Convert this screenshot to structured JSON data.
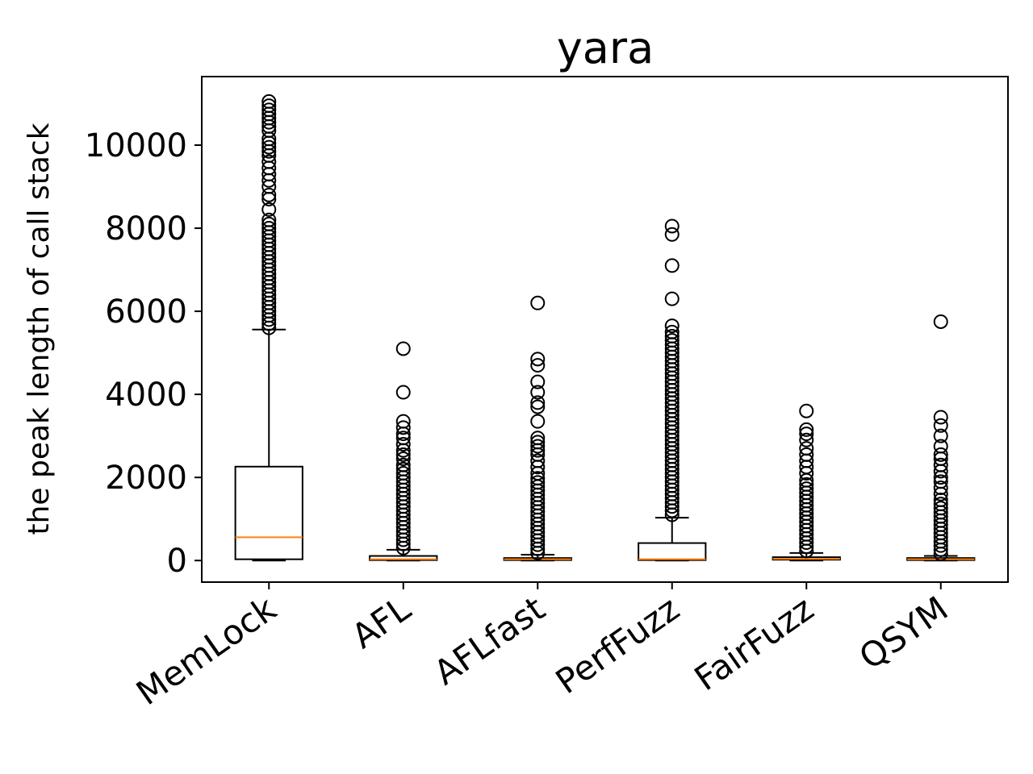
{
  "chart_data": {
    "type": "box",
    "title": "yara",
    "xlabel": "",
    "ylabel": "the peak length of call stack",
    "ylim": [
      -520,
      11650
    ],
    "yticks": [
      0,
      2000,
      4000,
      6000,
      8000,
      10000
    ],
    "grid": false,
    "colors": {
      "box": "#000000",
      "median": "#ff7f0e",
      "flier": "#000000"
    },
    "categories": [
      "MemLock",
      "AFL",
      "AFLfast",
      "PerfFuzz",
      "FairFuzz",
      "QSYM"
    ],
    "boxes": [
      {
        "name": "MemLock",
        "whislo": 0,
        "q1": 30,
        "median": 560,
        "q3": 2260,
        "whishi": 5560,
        "fliers": [
          5600,
          5700,
          5800,
          5900,
          6000,
          6100,
          6200,
          6300,
          6400,
          6500,
          6600,
          6700,
          6800,
          6900,
          7000,
          7100,
          7200,
          7300,
          7400,
          7500,
          7600,
          7700,
          7800,
          7900,
          8000,
          8100,
          8200,
          8450,
          8700,
          8800,
          9000,
          9150,
          9300,
          9450,
          9600,
          9750,
          9850,
          9950,
          10050,
          10150,
          10350,
          10450,
          10550,
          10650,
          10750,
          10850,
          10950,
          11050
        ]
      },
      {
        "name": "AFL",
        "whislo": 0,
        "q1": 10,
        "median": 30,
        "q3": 110,
        "whishi": 260,
        "fliers": [
          300,
          400,
          500,
          600,
          700,
          800,
          900,
          1000,
          1100,
          1200,
          1300,
          1400,
          1500,
          1600,
          1700,
          1800,
          1900,
          2000,
          2100,
          2200,
          2300,
          2450,
          2550,
          2650,
          2800,
          2950,
          3050,
          3200,
          3350,
          4050,
          5100
        ]
      },
      {
        "name": "AFLfast",
        "whislo": 0,
        "q1": 10,
        "median": 30,
        "q3": 60,
        "whishi": 140,
        "fliers": [
          180,
          280,
          380,
          480,
          580,
          680,
          780,
          880,
          980,
          1080,
          1180,
          1280,
          1380,
          1480,
          1580,
          1680,
          1780,
          1880,
          1980,
          2100,
          2250,
          2400,
          2550,
          2650,
          2750,
          2850,
          2950,
          3350,
          3700,
          3800,
          4050,
          4300,
          4700,
          4850,
          6200
        ]
      },
      {
        "name": "PerfFuzz",
        "whislo": 0,
        "q1": 10,
        "median": 30,
        "q3": 420,
        "whishi": 1030,
        "fliers": [
          1100,
          1200,
          1300,
          1400,
          1500,
          1600,
          1700,
          1800,
          1900,
          2000,
          2100,
          2200,
          2300,
          2400,
          2500,
          2600,
          2700,
          2800,
          2900,
          3000,
          3100,
          3200,
          3300,
          3400,
          3500,
          3600,
          3700,
          3800,
          3900,
          4000,
          4100,
          4200,
          4300,
          4400,
          4500,
          4600,
          4700,
          4800,
          4900,
          5000,
          5100,
          5200,
          5300,
          5400,
          5500,
          5650,
          6300,
          7100,
          7850,
          8050
        ]
      },
      {
        "name": "FairFuzz",
        "whislo": 0,
        "q1": 20,
        "median": 40,
        "q3": 80,
        "whishi": 180,
        "fliers": [
          230,
          330,
          430,
          530,
          630,
          730,
          830,
          930,
          1030,
          1130,
          1230,
          1330,
          1430,
          1530,
          1630,
          1730,
          1830,
          1930,
          2100,
          2250,
          2400,
          2550,
          2700,
          2900,
          3050,
          3150,
          3600
        ]
      },
      {
        "name": "QSYM",
        "whislo": 0,
        "q1": 10,
        "median": 30,
        "q3": 60,
        "whishi": 110,
        "fliers": [
          160,
          260,
          360,
          460,
          560,
          660,
          760,
          860,
          960,
          1060,
          1160,
          1260,
          1360,
          1460,
          1600,
          1750,
          1900,
          2000,
          2150,
          2300,
          2450,
          2550,
          2750,
          3000,
          3250,
          3450,
          5750
        ]
      }
    ]
  }
}
